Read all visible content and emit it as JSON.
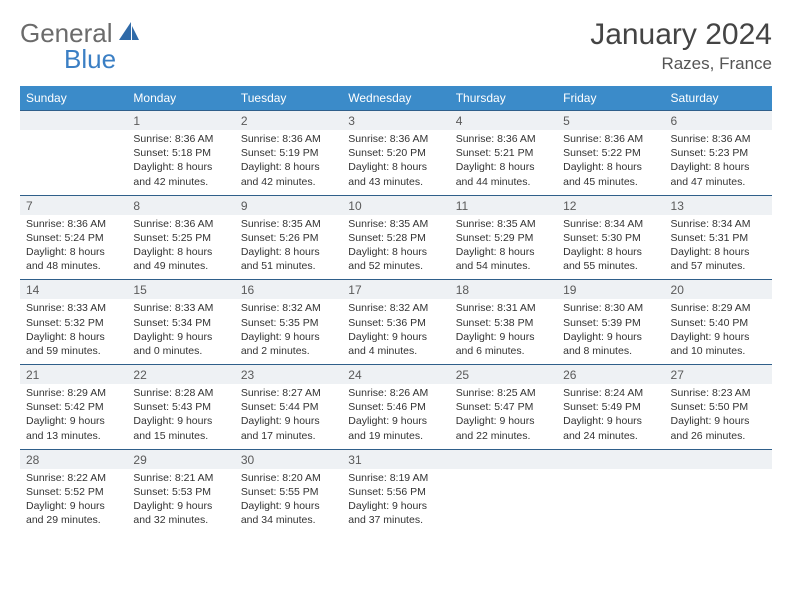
{
  "logo": {
    "general": "General",
    "blue": "Blue"
  },
  "header": {
    "title": "January 2024",
    "location": "Razes, France"
  },
  "colors": {
    "header_bg": "#3b8bc9",
    "row_border": "#2f5f8a",
    "daynum_bg": "#eef1f4",
    "text": "#333333"
  },
  "weekdays": [
    "Sunday",
    "Monday",
    "Tuesday",
    "Wednesday",
    "Thursday",
    "Friday",
    "Saturday"
  ],
  "weeks": [
    [
      null,
      {
        "n": "1",
        "sr": "8:36 AM",
        "ss": "5:18 PM",
        "dh": "8",
        "dm": "42"
      },
      {
        "n": "2",
        "sr": "8:36 AM",
        "ss": "5:19 PM",
        "dh": "8",
        "dm": "42"
      },
      {
        "n": "3",
        "sr": "8:36 AM",
        "ss": "5:20 PM",
        "dh": "8",
        "dm": "43"
      },
      {
        "n": "4",
        "sr": "8:36 AM",
        "ss": "5:21 PM",
        "dh": "8",
        "dm": "44"
      },
      {
        "n": "5",
        "sr": "8:36 AM",
        "ss": "5:22 PM",
        "dh": "8",
        "dm": "45"
      },
      {
        "n": "6",
        "sr": "8:36 AM",
        "ss": "5:23 PM",
        "dh": "8",
        "dm": "47"
      }
    ],
    [
      {
        "n": "7",
        "sr": "8:36 AM",
        "ss": "5:24 PM",
        "dh": "8",
        "dm": "48"
      },
      {
        "n": "8",
        "sr": "8:36 AM",
        "ss": "5:25 PM",
        "dh": "8",
        "dm": "49"
      },
      {
        "n": "9",
        "sr": "8:35 AM",
        "ss": "5:26 PM",
        "dh": "8",
        "dm": "51"
      },
      {
        "n": "10",
        "sr": "8:35 AM",
        "ss": "5:28 PM",
        "dh": "8",
        "dm": "52"
      },
      {
        "n": "11",
        "sr": "8:35 AM",
        "ss": "5:29 PM",
        "dh": "8",
        "dm": "54"
      },
      {
        "n": "12",
        "sr": "8:34 AM",
        "ss": "5:30 PM",
        "dh": "8",
        "dm": "55"
      },
      {
        "n": "13",
        "sr": "8:34 AM",
        "ss": "5:31 PM",
        "dh": "8",
        "dm": "57"
      }
    ],
    [
      {
        "n": "14",
        "sr": "8:33 AM",
        "ss": "5:32 PM",
        "dh": "8",
        "dm": "59"
      },
      {
        "n": "15",
        "sr": "8:33 AM",
        "ss": "5:34 PM",
        "dh": "9",
        "dm": "0"
      },
      {
        "n": "16",
        "sr": "8:32 AM",
        "ss": "5:35 PM",
        "dh": "9",
        "dm": "2"
      },
      {
        "n": "17",
        "sr": "8:32 AM",
        "ss": "5:36 PM",
        "dh": "9",
        "dm": "4"
      },
      {
        "n": "18",
        "sr": "8:31 AM",
        "ss": "5:38 PM",
        "dh": "9",
        "dm": "6"
      },
      {
        "n": "19",
        "sr": "8:30 AM",
        "ss": "5:39 PM",
        "dh": "9",
        "dm": "8"
      },
      {
        "n": "20",
        "sr": "8:29 AM",
        "ss": "5:40 PM",
        "dh": "9",
        "dm": "10"
      }
    ],
    [
      {
        "n": "21",
        "sr": "8:29 AM",
        "ss": "5:42 PM",
        "dh": "9",
        "dm": "13"
      },
      {
        "n": "22",
        "sr": "8:28 AM",
        "ss": "5:43 PM",
        "dh": "9",
        "dm": "15"
      },
      {
        "n": "23",
        "sr": "8:27 AM",
        "ss": "5:44 PM",
        "dh": "9",
        "dm": "17"
      },
      {
        "n": "24",
        "sr": "8:26 AM",
        "ss": "5:46 PM",
        "dh": "9",
        "dm": "19"
      },
      {
        "n": "25",
        "sr": "8:25 AM",
        "ss": "5:47 PM",
        "dh": "9",
        "dm": "22"
      },
      {
        "n": "26",
        "sr": "8:24 AM",
        "ss": "5:49 PM",
        "dh": "9",
        "dm": "24"
      },
      {
        "n": "27",
        "sr": "8:23 AM",
        "ss": "5:50 PM",
        "dh": "9",
        "dm": "26"
      }
    ],
    [
      {
        "n": "28",
        "sr": "8:22 AM",
        "ss": "5:52 PM",
        "dh": "9",
        "dm": "29"
      },
      {
        "n": "29",
        "sr": "8:21 AM",
        "ss": "5:53 PM",
        "dh": "9",
        "dm": "32"
      },
      {
        "n": "30",
        "sr": "8:20 AM",
        "ss": "5:55 PM",
        "dh": "9",
        "dm": "34"
      },
      {
        "n": "31",
        "sr": "8:19 AM",
        "ss": "5:56 PM",
        "dh": "9",
        "dm": "37"
      },
      null,
      null,
      null
    ]
  ]
}
